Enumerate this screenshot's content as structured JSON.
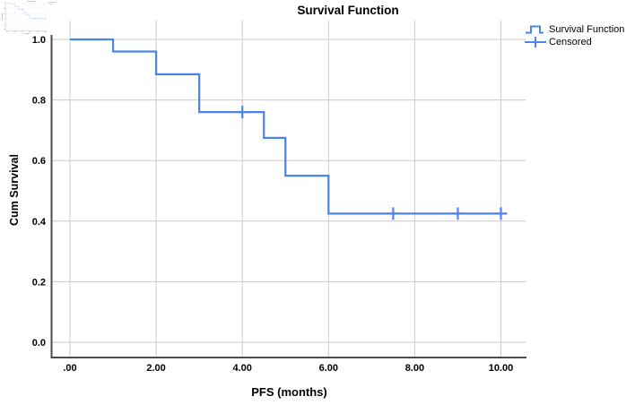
{
  "chart_data": {
    "type": "line",
    "subtype": "kaplan_meier_step",
    "title": "Survival Function",
    "xlabel": "PFS (months)",
    "ylabel": "Cum Survival",
    "xlim": [
      0,
      10
    ],
    "ylim": [
      0.0,
      1.0
    ],
    "grid": true,
    "legend_position": "top-right",
    "legend": [
      "Survival Function",
      "Censored"
    ],
    "xticks": [
      {
        "value": 0,
        "label": ".00"
      },
      {
        "value": 2,
        "label": "2.00"
      },
      {
        "value": 4,
        "label": "4.00"
      },
      {
        "value": 6,
        "label": "6.00"
      },
      {
        "value": 8,
        "label": "8.00"
      },
      {
        "value": 10,
        "label": "10.00"
      }
    ],
    "yticks": [
      {
        "value": 0.0,
        "label": "0.0"
      },
      {
        "value": 0.2,
        "label": "0.2"
      },
      {
        "value": 0.4,
        "label": "0.4"
      },
      {
        "value": 0.6,
        "label": "0.6"
      },
      {
        "value": 0.8,
        "label": "0.8"
      },
      {
        "value": 1.0,
        "label": "1.0"
      }
    ],
    "series": [
      {
        "name": "Survival Function",
        "type": "step",
        "points": [
          [
            0,
            1.0
          ],
          [
            1,
            0.96
          ],
          [
            2,
            0.885
          ],
          [
            3,
            0.76
          ],
          [
            4.5,
            0.675
          ],
          [
            5,
            0.55
          ],
          [
            6,
            0.425
          ]
        ],
        "end_x": 10
      }
    ],
    "censored_points": [
      [
        4,
        0.76
      ],
      [
        7.5,
        0.425
      ],
      [
        9,
        0.425
      ],
      [
        10,
        0.425
      ]
    ],
    "colors": {
      "line": "#4a86e8",
      "grid": "#c9c9c9",
      "axis": "#4d4d4d",
      "text": "#000000"
    }
  }
}
